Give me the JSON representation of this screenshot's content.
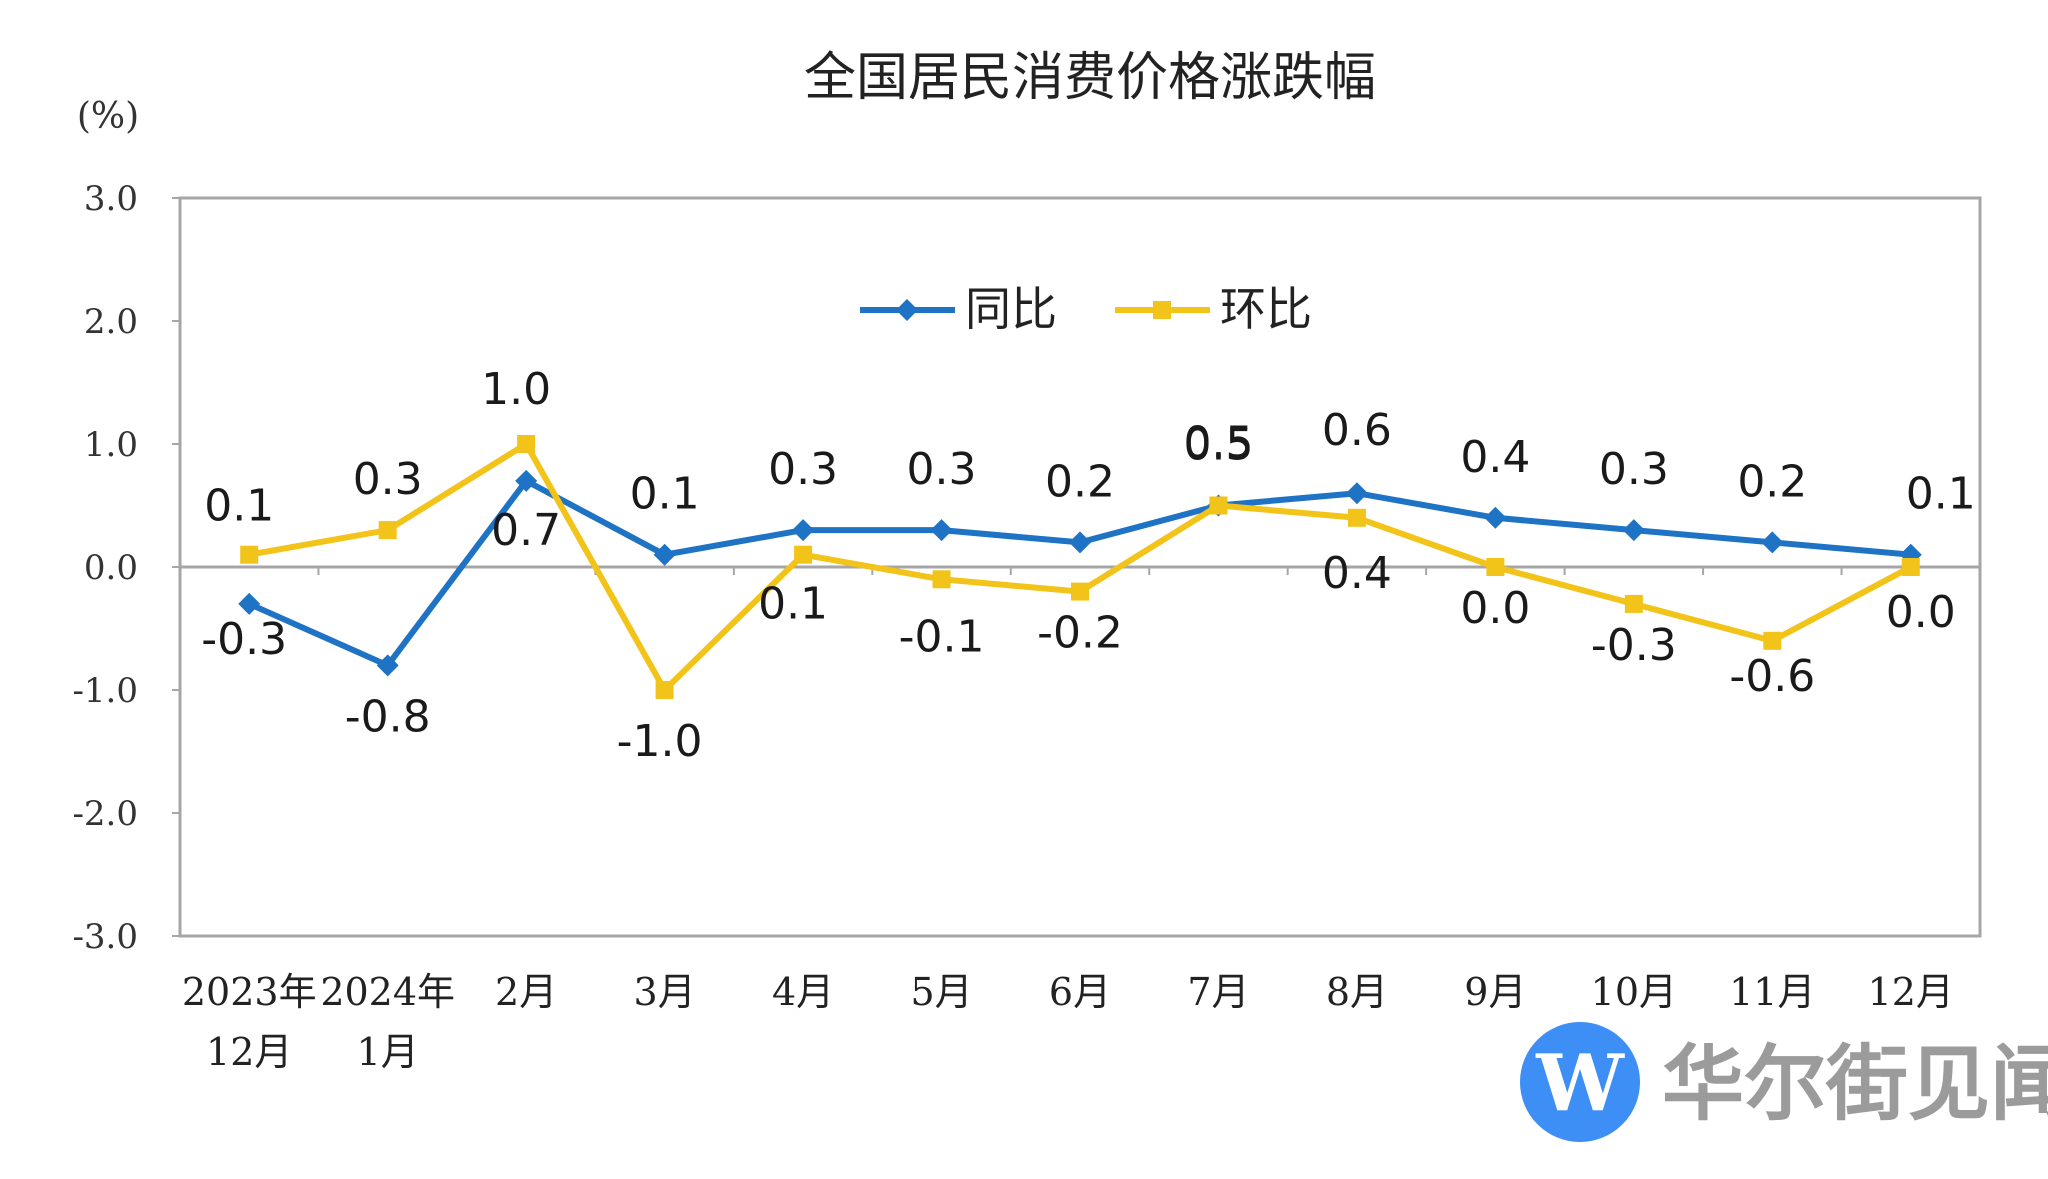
{
  "chart_data": {
    "type": "line",
    "title": "全国居民消费价格涨跌幅",
    "unit_label": "(%)",
    "categories": [
      [
        "2023年",
        "12月"
      ],
      [
        "2024年",
        "1月"
      ],
      [
        "2月"
      ],
      [
        "3月"
      ],
      [
        "4月"
      ],
      [
        "5月"
      ],
      [
        "6月"
      ],
      [
        "7月"
      ],
      [
        "8月"
      ],
      [
        "9月"
      ],
      [
        "10月"
      ],
      [
        "11月"
      ],
      [
        "12月"
      ]
    ],
    "ylim": [
      -3.0,
      3.0
    ],
    "yticks": [
      "3.0",
      "2.0",
      "1.0",
      "0.0",
      "-1.0",
      "-2.0",
      "-3.0"
    ],
    "grid": false,
    "legend_position": "top-center",
    "series": [
      {
        "name": "同比",
        "color": "#1f73c4",
        "marker": "diamond",
        "values": [
          -0.3,
          -0.8,
          0.7,
          0.1,
          0.3,
          0.3,
          0.2,
          0.5,
          0.6,
          0.4,
          0.3,
          0.2,
          0.1
        ],
        "labels": [
          "-0.3",
          "-0.8",
          "0.7",
          "0.1",
          "0.3",
          "0.3",
          "0.2",
          "0.5",
          "0.6",
          "0.4",
          "0.3",
          "0.2",
          "0.1"
        ]
      },
      {
        "name": "环比",
        "color": "#f2c318",
        "marker": "square",
        "values": [
          0.1,
          0.3,
          1.0,
          -1.0,
          0.1,
          -0.1,
          -0.2,
          0.5,
          0.4,
          0.0,
          -0.3,
          -0.6,
          0.0
        ],
        "labels": [
          "0.1",
          "0.3",
          "1.0",
          "-1.0",
          "0.1",
          "-0.1",
          "-0.2",
          "0.5",
          "0.4",
          "0.0",
          "-0.3",
          "-0.6",
          "0.0"
        ]
      }
    ]
  },
  "watermark": {
    "text": "华尔街见闻",
    "logo_letter": "W",
    "logo_color": "#3d8ff5",
    "text_color": "#9b9b9b"
  }
}
